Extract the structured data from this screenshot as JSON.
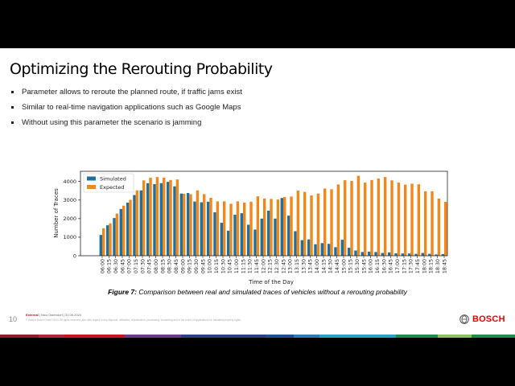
{
  "slide": {
    "title": "Optimizing the Rerouting Probability",
    "bullets": [
      "Parameter allows to reroute the planned route, if traffic jams exist",
      "Similar to real-time navigation applications such as Google Maps",
      "Without using this parameter the scenario is jamming"
    ],
    "caption_label": "Figure 7:",
    "caption_text": " Comparison between real and simulated traces of vehicles without a rerouting probability",
    "page_number": "10",
    "footer_classification": "External",
    "footer_info": " | Nico Ostendorf | 31.05.2024",
    "copyright": "© Robert Bosch GmbH 2024. All rights reserved, also with regard to any disposal, utilization, reproduction, processing, forwarding and in the event of applications for industrial property rights.",
    "logo_text": "BOSCH",
    "brand_color": "#ea0016"
  },
  "chart_data": {
    "type": "bar",
    "title": "",
    "xlabel": "Time of the Day",
    "ylabel": "Number of Traces",
    "ylim": [
      0,
      4550
    ],
    "yticks": [
      0,
      1000,
      2000,
      3000,
      4000
    ],
    "grid": false,
    "legend_placement": "top-left",
    "categories": [
      "06:00",
      "06:15",
      "06:30",
      "06:45",
      "07:00",
      "07:15",
      "07:30",
      "07:45",
      "08:00",
      "08:15",
      "08:30",
      "08:45",
      "09:00",
      "09:15",
      "09:30",
      "09:45",
      "10:00",
      "10:15",
      "10:30",
      "10:45",
      "11:00",
      "11:15",
      "11:30",
      "11:45",
      "12:00",
      "12:15",
      "12:30",
      "12:45",
      "13:00",
      "13:15",
      "13:30",
      "13:45",
      "14:00",
      "14:15",
      "14:30",
      "14:45",
      "15:00",
      "15:15",
      "15:30",
      "15:45",
      "16:00",
      "16:15",
      "16:30",
      "16:45",
      "17:00",
      "17:15",
      "17:30",
      "17:45",
      "18:00",
      "18:15",
      "18:30",
      "18:45"
    ],
    "series": [
      {
        "name": "Simulated",
        "color": "#1f6f9f",
        "values": [
          1120,
          1640,
          2030,
          2520,
          2860,
          3270,
          3520,
          3910,
          3860,
          3910,
          3980,
          3740,
          3350,
          3380,
          2920,
          2880,
          2910,
          2340,
          1780,
          1350,
          2210,
          2290,
          1670,
          1410,
          2000,
          2430,
          2000,
          3110,
          2160,
          1320,
          840,
          880,
          620,
          680,
          640,
          460,
          860,
          430,
          280,
          200,
          220,
          200,
          150,
          180,
          130,
          120,
          120,
          100,
          150,
          100,
          70,
          90
        ]
      },
      {
        "name": "Expected",
        "color": "#f0891a",
        "values": [
          1480,
          1740,
          2270,
          2700,
          3010,
          3520,
          4060,
          4200,
          4240,
          4200,
          4080,
          4110,
          3340,
          3310,
          3520,
          3320,
          3120,
          2930,
          2930,
          2800,
          2930,
          2860,
          2910,
          3200,
          3080,
          3060,
          3030,
          3160,
          3190,
          3510,
          3440,
          3250,
          3350,
          3620,
          3580,
          3840,
          4070,
          4030,
          4310,
          3940,
          4080,
          4160,
          4240,
          4060,
          3940,
          3830,
          3880,
          3850,
          3470,
          3470,
          3080,
          2900
        ]
      }
    ]
  }
}
